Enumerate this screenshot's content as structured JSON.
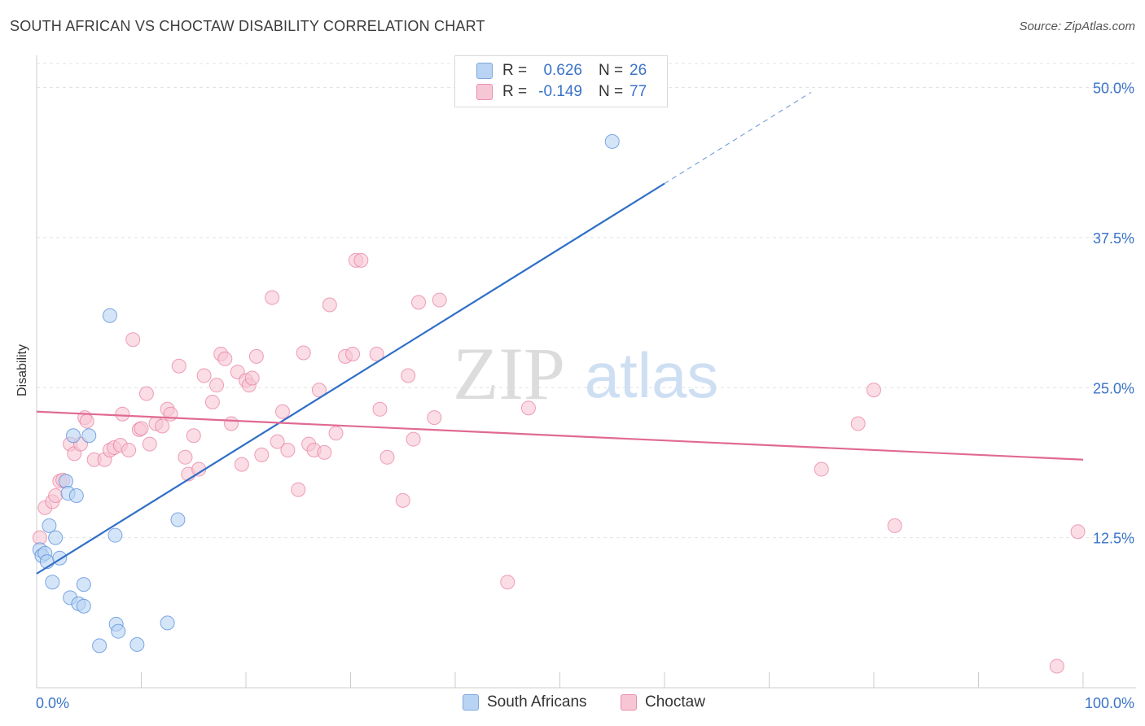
{
  "title": "SOUTH AFRICAN VS CHOCTAW DISABILITY CORRELATION CHART",
  "source": "Source: ZipAtlas.com",
  "watermark": {
    "zip": "ZIP",
    "atlas": "atlas"
  },
  "legend": {
    "rows": [
      {
        "r_label": "R =",
        "r_value": "0.626",
        "n_label": "N =",
        "n_value": "26",
        "color": "#4a86d8"
      },
      {
        "r_label": "R =",
        "r_value": "-0.149",
        "n_label": "N =",
        "n_value": "77",
        "color": "#e8799c"
      }
    ]
  },
  "chart_data": {
    "type": "scatter",
    "title": "SOUTH AFRICAN VS CHOCTAW DISABILITY CORRELATION CHART",
    "xlabel": "",
    "ylabel": "Disability",
    "xlim": [
      0,
      100
    ],
    "ylim": [
      0,
      52
    ],
    "x_tick_labels": [
      "0.0%",
      "100.0%"
    ],
    "y_ticks": [
      12.5,
      25.0,
      37.5,
      50.0
    ],
    "y_tick_labels": [
      "12.5%",
      "25.0%",
      "37.5%",
      "50.0%"
    ],
    "grid": true,
    "series": [
      {
        "name": "South Africans",
        "color": "#4a86d8",
        "fill": "#b9d3f4",
        "regression": {
          "x0": 0,
          "y0": 9.5,
          "x1": 60,
          "y1": 42.0,
          "dashed_to_x": 74,
          "dashed_to_y": 49.6
        },
        "points": [
          [
            0.3,
            11.5
          ],
          [
            0.5,
            11.0
          ],
          [
            0.8,
            11.2
          ],
          [
            1.0,
            10.5
          ],
          [
            1.2,
            13.5
          ],
          [
            1.5,
            8.8
          ],
          [
            1.8,
            12.5
          ],
          [
            2.2,
            10.8
          ],
          [
            2.8,
            17.2
          ],
          [
            3.0,
            16.2
          ],
          [
            3.2,
            7.5
          ],
          [
            3.5,
            21.0
          ],
          [
            3.8,
            16.0
          ],
          [
            4.0,
            7.0
          ],
          [
            4.5,
            6.8
          ],
          [
            4.5,
            8.6
          ],
          [
            5.0,
            21.0
          ],
          [
            6.0,
            3.5
          ],
          [
            7.0,
            31.0
          ],
          [
            7.5,
            12.7
          ],
          [
            7.6,
            5.3
          ],
          [
            7.8,
            4.7
          ],
          [
            9.6,
            3.6
          ],
          [
            12.5,
            5.4
          ],
          [
            13.5,
            14.0
          ],
          [
            55.0,
            45.5
          ]
        ]
      },
      {
        "name": "Choctaw",
        "color": "#e8799c",
        "fill": "#f7c6d4",
        "regression": {
          "x0": 0,
          "y0": 23.0,
          "x1": 100,
          "y1": 19.0
        },
        "points": [
          [
            0.3,
            12.5
          ],
          [
            0.8,
            15.0
          ],
          [
            1.5,
            15.5
          ],
          [
            1.8,
            16.0
          ],
          [
            2.2,
            17.2
          ],
          [
            2.5,
            17.3
          ],
          [
            3.2,
            20.3
          ],
          [
            3.6,
            19.5
          ],
          [
            4.2,
            20.3
          ],
          [
            4.6,
            22.5
          ],
          [
            4.8,
            22.2
          ],
          [
            5.5,
            19.0
          ],
          [
            6.5,
            19.0
          ],
          [
            7.0,
            19.8
          ],
          [
            7.4,
            20.0
          ],
          [
            8.0,
            20.2
          ],
          [
            8.2,
            22.8
          ],
          [
            8.8,
            19.8
          ],
          [
            9.2,
            29.0
          ],
          [
            9.8,
            21.5
          ],
          [
            10.0,
            21.6
          ],
          [
            10.5,
            24.5
          ],
          [
            10.8,
            20.3
          ],
          [
            11.4,
            22.0
          ],
          [
            12.0,
            21.8
          ],
          [
            12.5,
            23.2
          ],
          [
            12.8,
            22.8
          ],
          [
            13.6,
            26.8
          ],
          [
            14.2,
            19.2
          ],
          [
            14.5,
            17.8
          ],
          [
            15.0,
            21.0
          ],
          [
            15.5,
            18.2
          ],
          [
            16.0,
            26.0
          ],
          [
            16.8,
            23.8
          ],
          [
            17.2,
            25.2
          ],
          [
            17.6,
            27.8
          ],
          [
            18.0,
            27.4
          ],
          [
            18.6,
            22.0
          ],
          [
            19.2,
            26.3
          ],
          [
            19.6,
            18.6
          ],
          [
            20.0,
            25.6
          ],
          [
            20.3,
            25.2
          ],
          [
            20.6,
            25.8
          ],
          [
            21.0,
            27.6
          ],
          [
            21.5,
            19.4
          ],
          [
            22.5,
            32.5
          ],
          [
            23.0,
            20.5
          ],
          [
            23.5,
            23.0
          ],
          [
            24.0,
            19.8
          ],
          [
            25.0,
            16.5
          ],
          [
            25.5,
            27.9
          ],
          [
            26.0,
            20.3
          ],
          [
            26.5,
            19.8
          ],
          [
            27.0,
            24.8
          ],
          [
            27.5,
            19.6
          ],
          [
            28.0,
            31.9
          ],
          [
            28.6,
            21.2
          ],
          [
            29.5,
            27.6
          ],
          [
            30.2,
            27.8
          ],
          [
            30.5,
            35.6
          ],
          [
            31.0,
            35.6
          ],
          [
            32.5,
            27.8
          ],
          [
            32.8,
            23.2
          ],
          [
            33.5,
            19.2
          ],
          [
            35.0,
            15.6
          ],
          [
            35.5,
            26.0
          ],
          [
            36.0,
            20.7
          ],
          [
            36.5,
            32.1
          ],
          [
            38.0,
            22.5
          ],
          [
            38.5,
            32.3
          ],
          [
            45.0,
            8.8
          ],
          [
            47.0,
            23.3
          ],
          [
            75.0,
            18.2
          ],
          [
            78.5,
            22.0
          ],
          [
            80.0,
            24.8
          ],
          [
            82.0,
            13.5
          ],
          [
            99.5,
            13.0
          ]
        ]
      }
    ]
  },
  "extra_choctaw_low": [
    97.5,
    1.8
  ],
  "bottom_legend": [
    {
      "label": "South Africans"
    },
    {
      "label": "Choctaw"
    }
  ]
}
